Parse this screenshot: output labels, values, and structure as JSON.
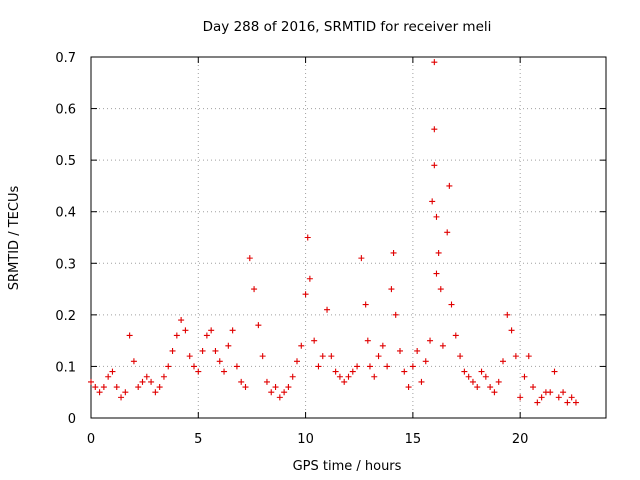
{
  "chart_data": {
    "type": "scatter",
    "title": "Day 288 of 2016, SRMTID for receiver meli",
    "xlabel": "GPS time / hours",
    "ylabel": "SRMTID / TECUs",
    "xlim": [
      0,
      24
    ],
    "ylim": [
      0,
      0.7
    ],
    "xticks": [
      0,
      5,
      10,
      15,
      20
    ],
    "xtick_labels": [
      "0",
      "5",
      "10",
      "15",
      "20"
    ],
    "yticks": [
      0,
      0.1,
      0.2,
      0.3,
      0.4,
      0.5,
      0.6,
      0.7
    ],
    "ytick_labels": [
      "0",
      "0.1",
      "0.2",
      "0.3",
      "0.4",
      "0.5",
      "0.6",
      "0.7"
    ],
    "grid": true,
    "marker": "+",
    "color": "#e00000",
    "series": [
      {
        "name": "SRMTID",
        "x": [
          0.0,
          0.2,
          0.4,
          0.6,
          0.8,
          1.0,
          1.2,
          1.4,
          1.6,
          1.8,
          2.0,
          2.2,
          2.4,
          2.6,
          2.8,
          3.0,
          3.2,
          3.4,
          3.6,
          3.8,
          4.0,
          4.2,
          4.4,
          4.6,
          4.8,
          5.0,
          5.2,
          5.4,
          5.6,
          5.8,
          6.0,
          6.2,
          6.4,
          6.6,
          6.8,
          7.0,
          7.2,
          7.4,
          7.6,
          7.8,
          8.0,
          8.2,
          8.4,
          8.6,
          8.8,
          9.0,
          9.2,
          9.4,
          9.6,
          9.8,
          10.0,
          10.1,
          10.2,
          10.4,
          10.6,
          10.8,
          11.0,
          11.2,
          11.4,
          11.6,
          11.8,
          12.0,
          12.2,
          12.4,
          12.6,
          12.8,
          12.9,
          13.0,
          13.2,
          13.4,
          13.6,
          13.8,
          14.0,
          14.1,
          14.2,
          14.4,
          14.6,
          14.8,
          15.0,
          15.2,
          15.4,
          15.6,
          15.8,
          15.9,
          16.0,
          16.0,
          16.0,
          16.1,
          16.1,
          16.2,
          16.3,
          16.4,
          16.6,
          16.7,
          16.8,
          17.0,
          17.2,
          17.4,
          17.6,
          17.8,
          18.0,
          18.2,
          18.4,
          18.6,
          18.8,
          19.0,
          19.2,
          19.4,
          19.6,
          19.8,
          20.0,
          20.2,
          20.4,
          20.6,
          20.8,
          21.0,
          21.2,
          21.4,
          21.6,
          21.8,
          22.0,
          22.2,
          22.4,
          22.6
        ],
        "y": [
          0.07,
          0.06,
          0.05,
          0.06,
          0.08,
          0.09,
          0.06,
          0.04,
          0.05,
          0.16,
          0.11,
          0.06,
          0.07,
          0.08,
          0.07,
          0.05,
          0.06,
          0.08,
          0.1,
          0.13,
          0.16,
          0.19,
          0.17,
          0.12,
          0.1,
          0.09,
          0.13,
          0.16,
          0.17,
          0.13,
          0.11,
          0.09,
          0.14,
          0.17,
          0.1,
          0.07,
          0.06,
          0.31,
          0.25,
          0.18,
          0.12,
          0.07,
          0.05,
          0.06,
          0.04,
          0.05,
          0.06,
          0.08,
          0.11,
          0.14,
          0.24,
          0.35,
          0.27,
          0.15,
          0.1,
          0.12,
          0.21,
          0.12,
          0.09,
          0.08,
          0.07,
          0.08,
          0.09,
          0.1,
          0.31,
          0.22,
          0.15,
          0.1,
          0.08,
          0.12,
          0.14,
          0.1,
          0.25,
          0.32,
          0.2,
          0.13,
          0.09,
          0.06,
          0.1,
          0.13,
          0.07,
          0.11,
          0.15,
          0.42,
          0.69,
          0.56,
          0.49,
          0.39,
          0.28,
          0.32,
          0.25,
          0.14,
          0.36,
          0.45,
          0.22,
          0.16,
          0.12,
          0.09,
          0.08,
          0.07,
          0.06,
          0.09,
          0.08,
          0.06,
          0.05,
          0.07,
          0.11,
          0.2,
          0.17,
          0.12,
          0.04,
          0.08,
          0.12,
          0.06,
          0.03,
          0.04,
          0.05,
          0.05,
          0.09,
          0.04,
          0.05,
          0.03,
          0.04,
          0.03
        ]
      }
    ]
  }
}
